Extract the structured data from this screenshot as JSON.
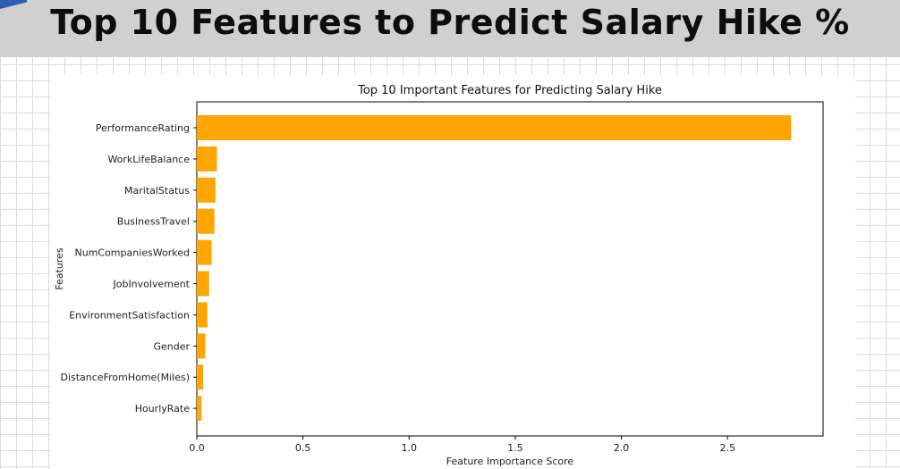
{
  "banner": {
    "title": "Top 10 Features to Predict Salary Hike %"
  },
  "chart_data": {
    "type": "bar",
    "orientation": "horizontal",
    "title": "Top 10 Important Features for Predicting Salary Hike",
    "xlabel": "Feature Importance Score",
    "ylabel": "Features",
    "categories": [
      "PerformanceRating",
      "WorkLifeBalance",
      "MaritalStatus",
      "BusinessTravel",
      "NumCompaniesWorked",
      "JobInvolvement",
      "EnvironmentSatisfaction",
      "Gender",
      "DistanceFromHome(Miles)",
      "HourlyRate"
    ],
    "values": [
      2.8,
      0.095,
      0.088,
      0.083,
      0.07,
      0.058,
      0.05,
      0.04,
      0.03,
      0.022
    ],
    "xlim": [
      0,
      2.95
    ],
    "xticks": [
      0.0,
      0.5,
      1.0,
      1.5,
      2.0,
      2.5
    ],
    "xtick_labels": [
      "0.0",
      "0.5",
      "1.0",
      "1.5",
      "2.0",
      "2.5"
    ],
    "bar_color": "#ffa500",
    "grid": false,
    "legend": "none"
  }
}
